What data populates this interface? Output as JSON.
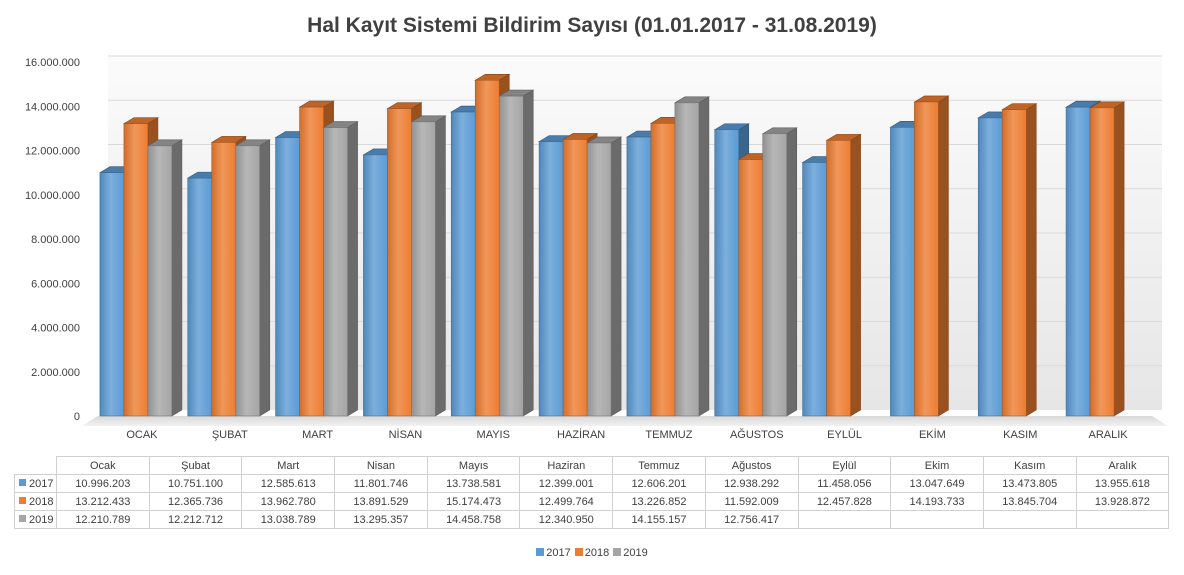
{
  "chart_data": {
    "type": "bar",
    "title": "Hal Kayıt Sistemi Bildirim Sayısı (01.01.2017  - 31.08.2019)",
    "categories": [
      "OCAK",
      "ŞUBAT",
      "MART",
      "NİSAN",
      "MAYIS",
      "HAZİRAN",
      "TEMMUZ",
      "AĞUSTOS",
      "EYLÜL",
      "EKİM",
      "KASIM",
      "ARALIK"
    ],
    "table_headers": [
      "Ocak",
      "Şubat",
      "Mart",
      "Nisan",
      "Mayıs",
      "Haziran",
      "Temmuz",
      "Ağustos",
      "Eylül",
      "Ekim",
      "Kasım",
      "Aralık"
    ],
    "series": [
      {
        "name": "2017",
        "color": "#5b9bd5",
        "values": [
          10996203,
          10751100,
          12585613,
          11801746,
          13738581,
          12399001,
          12606201,
          12938292,
          11458056,
          13047649,
          13473805,
          13955618
        ],
        "labels": [
          "10.996.203",
          "10.751.100",
          "12.585.613",
          "11.801.746",
          "13.738.581",
          "12.399.001",
          "12.606.201",
          "12.938.292",
          "11.458.056",
          "13.047.649",
          "13.473.805",
          "13.955.618"
        ]
      },
      {
        "name": "2018",
        "color": "#ed7d31",
        "values": [
          13212433,
          12365736,
          13962780,
          13891529,
          15174473,
          12499764,
          13226852,
          11592009,
          12457828,
          14193733,
          13845704,
          13928872
        ],
        "labels": [
          "13.212.433",
          "12.365.736",
          "13.962.780",
          "13.891.529",
          "15.174.473",
          "12.499.764",
          "13.226.852",
          "11.592.009",
          "12.457.828",
          "14.193.733",
          "13.845.704",
          "13.928.872"
        ]
      },
      {
        "name": "2019",
        "color": "#a5a5a5",
        "values": [
          12210789,
          12212712,
          13038789,
          13295357,
          14458758,
          12340950,
          14155157,
          12756417,
          null,
          null,
          null,
          null
        ],
        "labels": [
          "12.210.789",
          "12.212.712",
          "13.038.789",
          "13.295.357",
          "14.458.758",
          "12.340.950",
          "14.155.157",
          "12.756.417",
          "",
          "",
          "",
          ""
        ]
      }
    ],
    "yticks": [
      "0",
      "2.000.000",
      "4.000.000",
      "6.000.000",
      "8.000.000",
      "10.000.000",
      "12.000.000",
      "14.000.000",
      "16.000.000"
    ],
    "ylim": [
      0,
      16000000
    ],
    "grid": true,
    "legend": "bottom"
  }
}
